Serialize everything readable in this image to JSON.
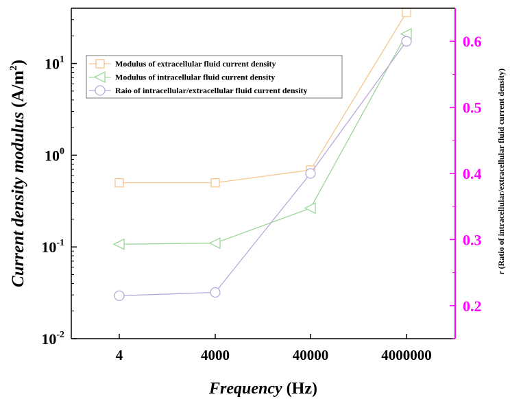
{
  "chart_data": {
    "type": "line",
    "x_scale": "categorical",
    "categories": [
      "4",
      "4000",
      "40000",
      "4000000"
    ],
    "xlabel": {
      "italic": "Frequency",
      "normal": " (Hz)"
    },
    "ylabel": {
      "italic": "Current density modulus",
      "normal": " (A/m",
      "sup": "2",
      "close": ")"
    },
    "y2label": {
      "italic": "r",
      "normal": " (Ratio of intracellular/extracellular fluid current density)"
    },
    "y_scale": "log",
    "ylim": [
      0.01,
      40
    ],
    "y_ticks": [
      {
        "value": 0.01,
        "base": "10",
        "exp": "-2"
      },
      {
        "value": 0.1,
        "base": "10",
        "exp": "-1"
      },
      {
        "value": 1,
        "base": "10",
        "exp": "0"
      },
      {
        "value": 10,
        "base": "10",
        "exp": "1"
      }
    ],
    "y2lim": [
      0.15,
      0.65
    ],
    "y2_ticks": [
      "0.2",
      "0.3",
      "0.4",
      "0.5",
      "0.6"
    ],
    "grid": false,
    "legend_position": "upper-left",
    "series": [
      {
        "name": "Modulus of extracellular fluid current density",
        "axis": "left",
        "marker": "square",
        "color": "#f6c48d",
        "values": [
          0.5,
          0.5,
          0.69,
          36
        ]
      },
      {
        "name": "Modulus of intracellular fluid current density",
        "axis": "left",
        "marker": "triangle-left",
        "color": "#9bd69b",
        "values": [
          0.107,
          0.11,
          0.265,
          21
        ]
      },
      {
        "name": "Raio of intracellular/extracellular fluid current density",
        "axis": "right",
        "marker": "circle",
        "color": "#b7a9d8",
        "values": [
          0.215,
          0.22,
          0.4,
          0.6
        ]
      }
    ],
    "right_axis_color": "#ff00ff"
  }
}
